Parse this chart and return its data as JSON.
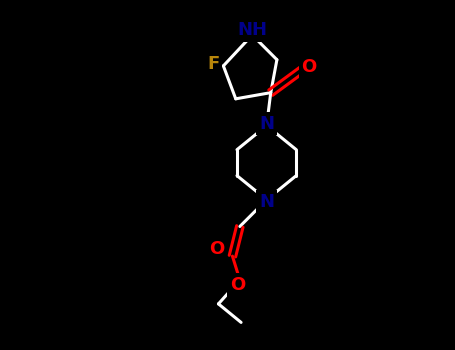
{
  "background_color": "#000000",
  "bond_color": "#ffffff",
  "N_color": "#00008b",
  "O_color": "#ff0000",
  "F_color": "#b8860b",
  "line_width": 2.2,
  "font_size_atoms": 12,
  "figsize": [
    4.55,
    3.5
  ],
  "dpi": 100,
  "xlim": [
    0,
    9.1
  ],
  "ylim": [
    0,
    8.5
  ]
}
